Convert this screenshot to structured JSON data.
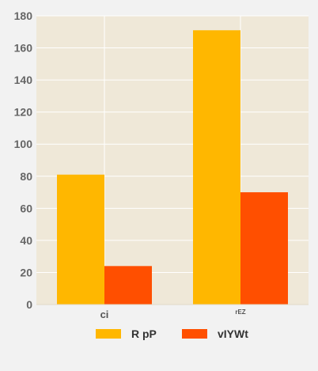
{
  "chart_data": {
    "type": "bar",
    "categories": [
      "ci",
      "rEZ"
    ],
    "series": [
      {
        "name": "R pP",
        "values": [
          81,
          171
        ],
        "color": "#ffb700"
      },
      {
        "name": "vIYWt",
        "values": [
          24,
          70
        ],
        "color": "#ff4f00"
      }
    ],
    "ylim": [
      0,
      180
    ],
    "yticks": [
      0,
      20,
      40,
      60,
      80,
      100,
      120,
      140,
      160,
      180
    ],
    "grid": true,
    "legend_position": "bottom",
    "plot_background": "#efe8d8"
  }
}
